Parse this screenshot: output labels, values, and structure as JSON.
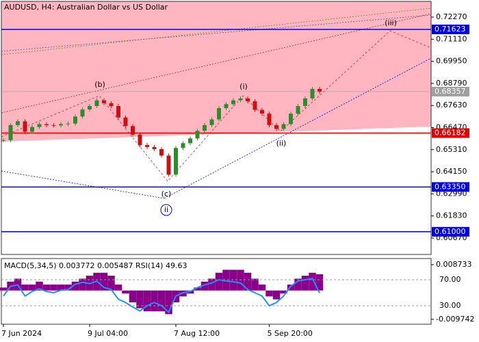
{
  "chart_data": {
    "type": "candlestick",
    "title": "AUDUSD, H4:  Australian Dollar vs US Dollar",
    "categories": [
      "7 Jun 2024",
      null,
      null,
      null,
      null,
      null,
      null,
      null,
      null,
      null,
      null,
      null,
      "9 Jul 04:00",
      null,
      null,
      null,
      null,
      null,
      null,
      null,
      null,
      null,
      null,
      null,
      "7 Aug 12:00",
      null,
      null,
      null,
      null,
      null,
      null,
      null,
      null,
      null,
      null,
      null,
      null,
      "5 Sep 20:00",
      null,
      null,
      null,
      null,
      null,
      null,
      null
    ],
    "values": [
      0.6581,
      0.666,
      0.668,
      0.6625,
      0.665,
      0.6665,
      0.666,
      0.6658,
      0.6665,
      0.6668,
      0.6705,
      0.6742,
      0.676,
      0.679,
      0.6775,
      0.676,
      0.67,
      0.6655,
      0.661,
      0.6555,
      0.6545,
      0.6534,
      0.65,
      0.64,
      0.654,
      0.6565,
      0.659,
      0.663,
      0.666,
      0.669,
      0.6749,
      0.677,
      0.679,
      0.68,
      0.6785,
      0.674,
      0.672,
      0.666,
      0.664,
      0.6665,
      0.672,
      0.676,
      0.68,
      0.685,
      0.68357
    ],
    "up_color": "#2e8b2e",
    "down_color": "#d01010",
    "ylim": [
      0.59808,
      0.73096
    ],
    "yticks": [
      {
        "value": 0.7227,
        "label": "0.72270"
      },
      {
        "value": 0.7111,
        "label": "0.71110"
      },
      {
        "value": 0.6995,
        "label": "0.69950"
      },
      {
        "value": 0.6879,
        "label": "0.68790"
      },
      {
        "value": 0.6763,
        "label": "0.67630"
      },
      {
        "value": 0.6647,
        "label": "0.66470"
      },
      {
        "value": 0.6531,
        "label": "0.65310"
      },
      {
        "value": 0.6415,
        "label": "0.64150"
      },
      {
        "value": 0.6299,
        "label": "0.62990"
      },
      {
        "value": 0.6183,
        "label": "0.61830"
      },
      {
        "value": 0.6067,
        "label": "0.60670"
      }
    ],
    "levels": [
      {
        "value": 0.71623,
        "label": "0.71623",
        "color": "#0000e0"
      },
      {
        "value": 0.66182,
        "label": "0.66182",
        "color": "#e00000"
      },
      {
        "value": 0.6335,
        "label": "0.63350",
        "color": "#0000e0"
      },
      {
        "value": 0.61,
        "label": "0.61000",
        "color": "#0000e0"
      }
    ],
    "current": {
      "value": 0.68357,
      "label": "0.68357",
      "color": "#a0a0a0"
    },
    "annotations": [
      "(b)",
      "(i)",
      "(c)",
      "(ii)",
      "(iii)",
      "ii"
    ],
    "macd": {
      "title": "MACD(5,34,5) 0.003772 0.005487 RSI(14) 49.63",
      "color": "#8b008b",
      "values": [
        0.001,
        0.003,
        0.004,
        0.002,
        0.002,
        0.003,
        0.002,
        0.002,
        0.002,
        0.002,
        0.003,
        0.004,
        0.005,
        0.006,
        0.006,
        0.005,
        0.002,
        -0.001,
        -0.004,
        -0.006,
        -0.007,
        -0.007,
        -0.007,
        -0.008,
        -0.004,
        -0.002,
        -0.001,
        0.001,
        0.003,
        0.004,
        0.006,
        0.007,
        0.007,
        0.007,
        0.006,
        0.004,
        0.002,
        -0.002,
        -0.003,
        -0.001,
        0.002,
        0.004,
        0.005,
        0.006,
        0.0055
      ],
      "ylim": [
        -0.0114,
        0.0108
      ],
      "yticks": [
        0.008733,
        -0.009742
      ]
    },
    "rsi": {
      "color": "#1e90ff",
      "values": [
        45,
        60,
        62,
        45,
        52,
        56,
        52,
        50,
        54,
        55,
        63,
        66,
        64,
        68,
        58,
        55,
        40,
        35,
        28,
        22,
        30,
        35,
        30,
        20,
        45,
        50,
        52,
        58,
        62,
        65,
        70,
        68,
        67,
        65,
        55,
        50,
        45,
        30,
        35,
        45,
        60,
        68,
        70,
        72,
        49.63
      ],
      "ylim": [
        1.6,
        102.6
      ],
      "yticks": [
        {
          "value": 70,
          "label": "70.00"
        },
        {
          "value": 30,
          "label": "30.00"
        }
      ]
    }
  }
}
